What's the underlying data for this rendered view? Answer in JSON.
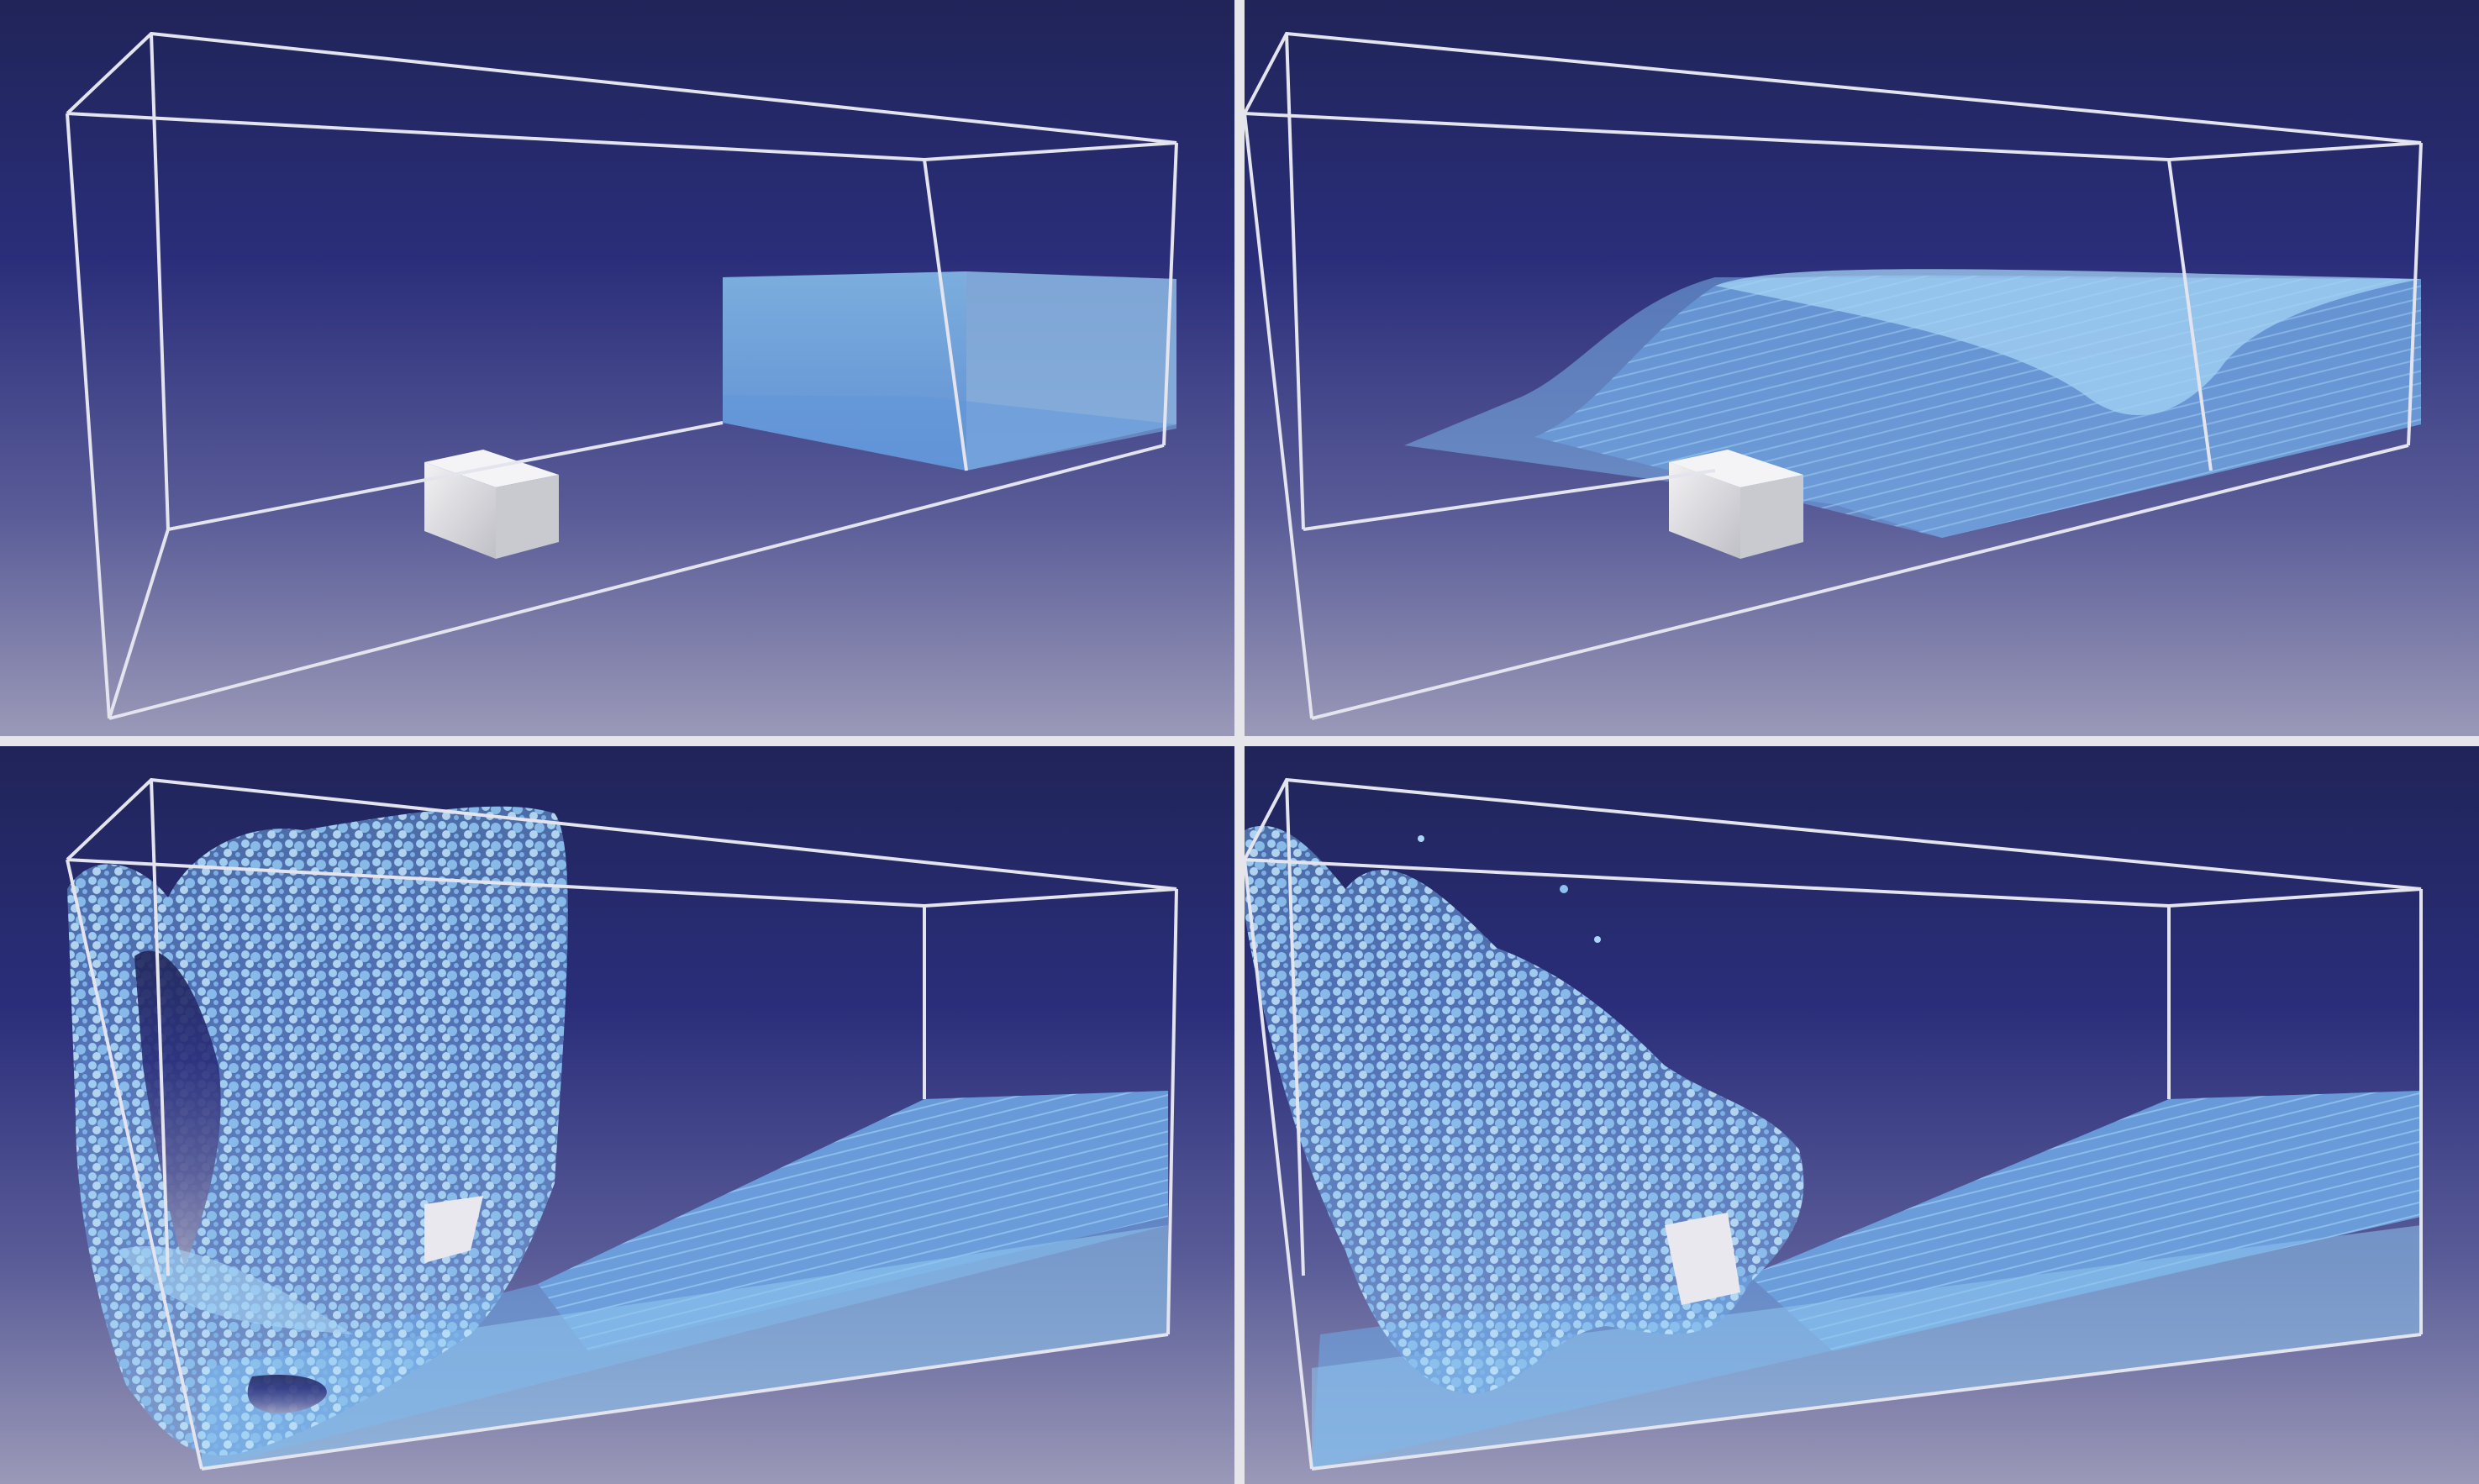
{
  "figure": {
    "panels": [
      {
        "id": "initial-state",
        "description_key": "tl"
      },
      {
        "id": "dam-break-wave",
        "description_key": "tr"
      },
      {
        "id": "splash-impact",
        "description_key": "bl"
      },
      {
        "id": "wave-recede",
        "description_key": "br"
      }
    ]
  },
  "colors": {
    "bg_top": "#23255f",
    "bg_bottom": "#8d8cb0",
    "frame_line": "#e4e4ee",
    "water_light": "#9fd0f0",
    "water_mid": "#6aa6e0",
    "water_dark": "#3f6fc0",
    "obstacle": "#dedee2",
    "separator": "#e6e6ea"
  }
}
